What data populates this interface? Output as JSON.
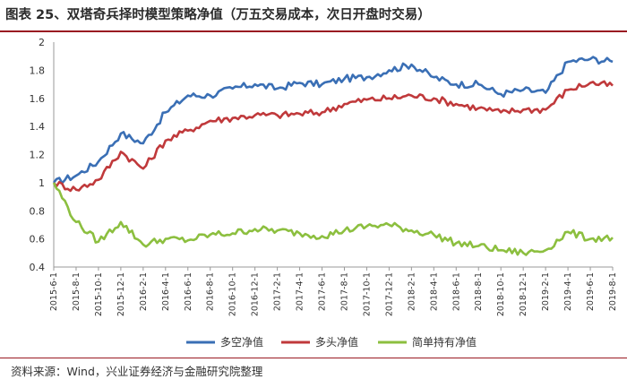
{
  "figure": {
    "title": "图表 25、双塔奇兵择时模型策略净值（万五交易成本，次日开盘时交易）",
    "source": "资料来源：Wind，兴业证券经济与金融研究院整理",
    "accent_color": "#9a1b22"
  },
  "chart_data": {
    "type": "line",
    "ylim": [
      0.4,
      2.0
    ],
    "yticks": [
      "2",
      "1.8",
      "1.6",
      "1.4",
      "1.2",
      "1",
      "0.8",
      "0.6",
      "0.4"
    ],
    "categories": [
      "2015-6-1",
      "2015-8-1",
      "2015-10-1",
      "2015-12-1",
      "2016-2-1",
      "2016-4-1",
      "2016-6-1",
      "2016-8-1",
      "2016-10-1",
      "2016-12-1",
      "2017-2-1",
      "2017-4-1",
      "2017-6-1",
      "2017-8-1",
      "2017-10-1",
      "2017-12-1",
      "2018-2-1",
      "2018-4-1",
      "2018-6-1",
      "2018-8-1",
      "2018-10-1",
      "2018-12-1",
      "2019-2-1",
      "2019-4-1",
      "2019-6-1",
      "2019-8-1"
    ],
    "legend_position": "bottom",
    "series": [
      {
        "name": "多空净值",
        "color": "#3a6fb5",
        "values": [
          1.0,
          1.05,
          1.15,
          1.35,
          1.28,
          1.5,
          1.62,
          1.62,
          1.67,
          1.7,
          1.67,
          1.71,
          1.7,
          1.74,
          1.75,
          1.8,
          1.84,
          1.75,
          1.7,
          1.7,
          1.63,
          1.66,
          1.64,
          1.86,
          1.88,
          1.86
        ]
      },
      {
        "name": "多头净值",
        "color": "#c0393b",
        "values": [
          1.0,
          0.95,
          1.02,
          1.22,
          1.1,
          1.3,
          1.37,
          1.44,
          1.46,
          1.48,
          1.48,
          1.49,
          1.5,
          1.56,
          1.59,
          1.6,
          1.62,
          1.6,
          1.56,
          1.53,
          1.5,
          1.52,
          1.52,
          1.66,
          1.71,
          1.69
        ]
      },
      {
        "name": "简单持有净值",
        "color": "#8cbf3f",
        "values": [
          1.0,
          0.72,
          0.58,
          0.72,
          0.56,
          0.6,
          0.59,
          0.63,
          0.64,
          0.67,
          0.66,
          0.64,
          0.62,
          0.66,
          0.69,
          0.7,
          0.66,
          0.63,
          0.57,
          0.55,
          0.52,
          0.5,
          0.52,
          0.65,
          0.6,
          0.61
        ]
      }
    ]
  }
}
